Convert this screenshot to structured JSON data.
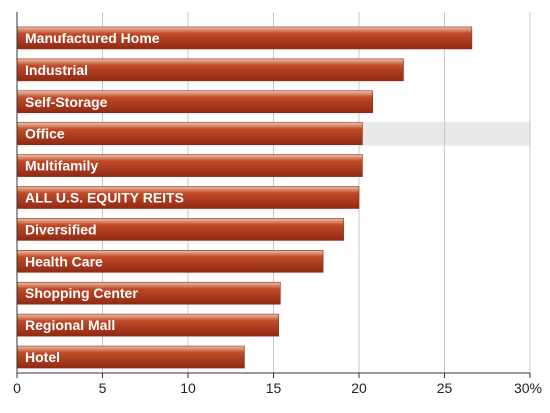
{
  "chart_data": {
    "type": "bar",
    "orientation": "horizontal",
    "title": "",
    "xlabel": "",
    "ylabel": "",
    "categories": [
      "Manufactured Home",
      "Industrial",
      "Self-Storage",
      "Office",
      "Multifamily",
      "ALL U.S. EQUITY REITS",
      "Diversified",
      "Health Care",
      "Shopping Center",
      "Regional Mall",
      "Hotel"
    ],
    "values": [
      26.6,
      22.6,
      20.8,
      20.2,
      20.2,
      20.0,
      19.1,
      17.9,
      15.4,
      15.3,
      13.3
    ],
    "xlim": [
      0,
      30
    ],
    "xticks": [
      0,
      5,
      10,
      15,
      20,
      25,
      30
    ],
    "xtick_labels": [
      "0",
      "5",
      "10",
      "15",
      "20",
      "25",
      "30%"
    ],
    "highlighted_category": "Office",
    "grid": "vertical",
    "colors": {
      "bar_dark": "#8f2a14",
      "bar_mid": "#c04a28",
      "bar_light": "#ecc3a8",
      "highlight_band": "#e9e9ea",
      "grid": "#c8c8c8",
      "axis": "#333333"
    }
  }
}
